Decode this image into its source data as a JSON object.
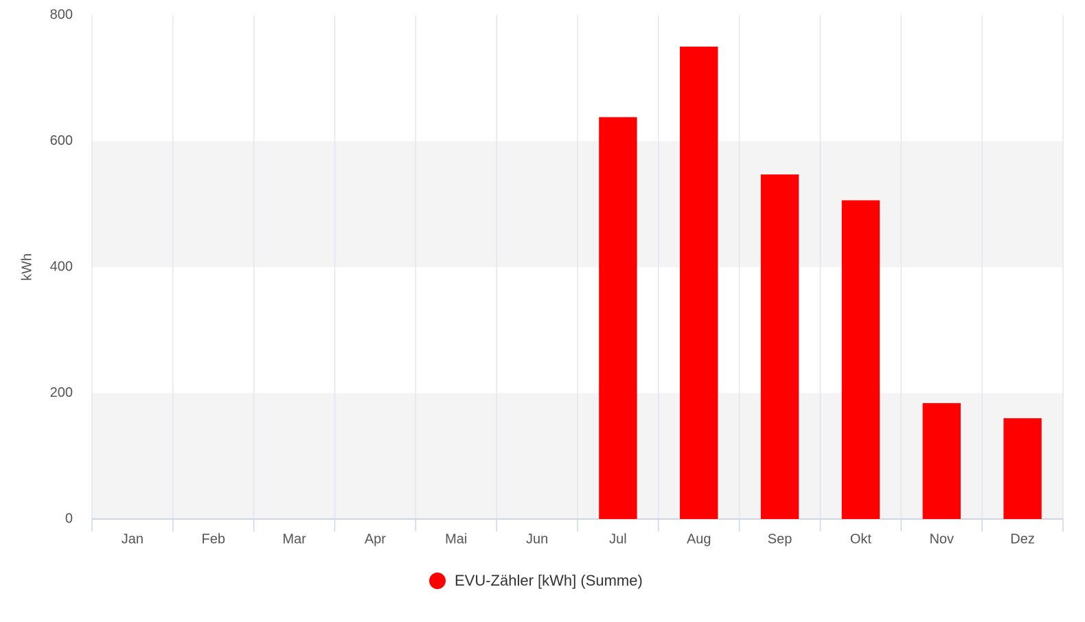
{
  "chart_data": {
    "type": "bar",
    "y_label": "kWh",
    "categories": [
      "Jan",
      "Feb",
      "Mar",
      "Apr",
      "Mai",
      "Jun",
      "Jul",
      "Aug",
      "Sep",
      "Okt",
      "Nov",
      "Dez"
    ],
    "series": [
      {
        "name": "EVU-Zähler [kWh] (Summe)",
        "color": "#ff0000",
        "values": [
          0,
          0,
          0,
          0,
          0,
          0,
          638,
          750,
          547,
          506,
          184,
          160
        ]
      }
    ],
    "ylim": [
      0,
      800
    ],
    "yticks": [
      0,
      200,
      400,
      600,
      800
    ],
    "grid": true,
    "legend": "bottom"
  }
}
